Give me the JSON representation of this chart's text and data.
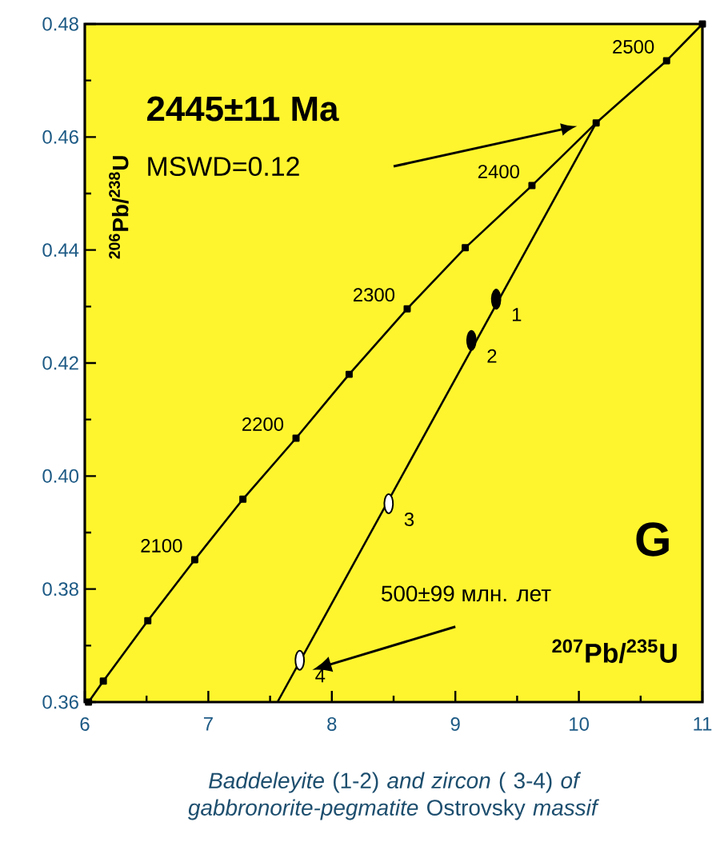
{
  "chart_data": {
    "type": "line",
    "xlabel": "$^{207}$Pb/$^{235}$U",
    "ylabel": "$^{206}$Pb/$^{238}$U",
    "xlim": [
      6,
      11
    ],
    "ylim": [
      0.36,
      0.48
    ],
    "xticks": [
      6,
      7,
      8,
      9,
      10,
      11
    ],
    "yticks": [
      0.36,
      0.38,
      {
        "value": 0.4,
        "label": "0.40"
      },
      0.42,
      0.44,
      0.46,
      0.48
    ],
    "series": [
      {
        "color": "#000000",
        "marker": "square",
        "x": [
          6.03,
          6.15,
          6.51,
          6.89,
          7.28,
          7.71,
          8.14,
          8.61,
          9.08,
          9.62,
          10.14,
          10.71,
          11.0
        ],
        "values": [
          0.36,
          0.3637,
          0.3744,
          0.3852,
          0.3959,
          0.4067,
          0.418,
          0.4296,
          0.4404,
          0.4514,
          0.4625,
          0.4735,
          0.48
        ]
      },
      {
        "color": "#000000",
        "marker": "none",
        "x": [
          7.56,
          10.14
        ],
        "values": [
          0.36,
          0.4625
        ]
      },
      {
        "type": "scatter",
        "color": "#000000",
        "x": [
          9.33,
          9.13
        ],
        "values": [
          0.4313,
          0.424
        ]
      },
      {
        "type": "scatter",
        "color": "#ffffff",
        "x": [
          8.46,
          7.74
        ],
        "values": [
          0.3951,
          0.3674
        ]
      }
    ],
    "annotations": [
      "2445±11 Ma",
      "MSWD=0.12",
      "G",
      "500±99 млн. лет",
      "*Baddeleyite* (1-2) *and zircon* ( 3-4) *of gabbronorite-pegmatite* Ostrovsky *massif*",
      {
        "text": "2100",
        "x": 6.89,
        "y": 0.3852
      },
      {
        "text": "2200",
        "x": 7.71,
        "y": 0.4067
      },
      {
        "text": "2300",
        "x": 8.61,
        "y": 0.4296
      },
      {
        "text": "2400",
        "x": 9.62,
        "y": 0.4514
      },
      {
        "text": "2500",
        "x": 10.71,
        "y": 0.4735
      },
      {
        "text": "1",
        "x": 9.33,
        "y": 0.4313
      },
      {
        "text": "2",
        "x": 9.13,
        "y": 0.424
      },
      {
        "text": "3",
        "x": 8.46,
        "y": 0.3951
      },
      {
        "text": "4",
        "x": 7.74,
        "y": 0.3674
      }
    ]
  }
}
